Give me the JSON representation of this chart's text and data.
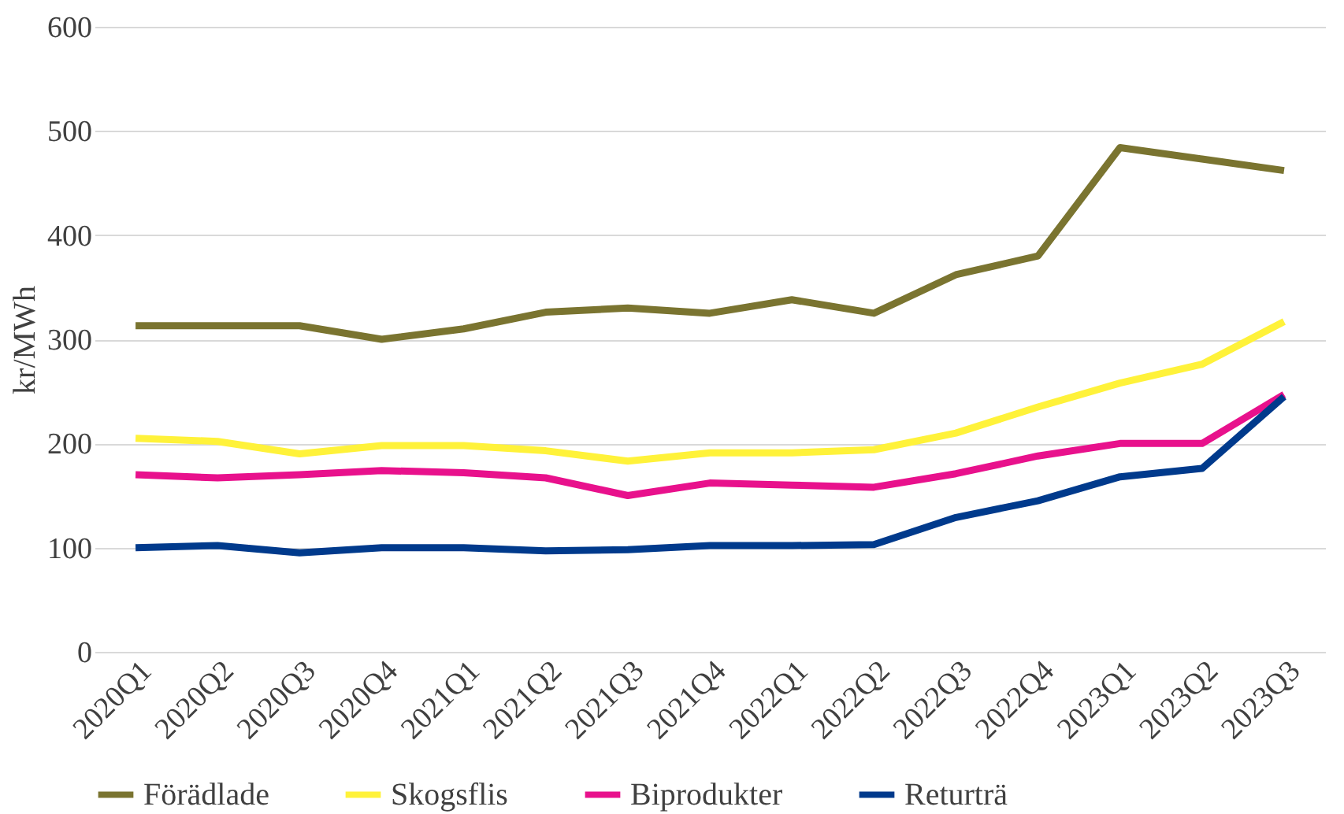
{
  "chart_data": {
    "type": "line",
    "ylabel": "kr/MWh",
    "categories": [
      "2020Q1",
      "2020Q2",
      "2020Q3",
      "2020Q4",
      "2021Q1",
      "2021Q2",
      "2021Q3",
      "2021Q4",
      "2022Q1",
      "2022Q2",
      "2022Q3",
      "2022Q4",
      "2023Q1",
      "2023Q2",
      "2023Q3"
    ],
    "series": [
      {
        "name": "Förädlade",
        "color": "#7a7430",
        "values": [
          313,
          313,
          313,
          300,
          310,
          326,
          330,
          325,
          338,
          325,
          362,
          380,
          484,
          473,
          462
        ]
      },
      {
        "name": "Skogsflis",
        "color": "#fff23a",
        "values": [
          205,
          202,
          190,
          198,
          198,
          193,
          183,
          191,
          191,
          194,
          210,
          235,
          258,
          276,
          317
        ]
      },
      {
        "name": "Biprodukter",
        "color": "#e8118c",
        "values": [
          170,
          167,
          170,
          174,
          172,
          167,
          150,
          162,
          160,
          158,
          171,
          188,
          200,
          200,
          247
        ]
      },
      {
        "name": "Returträ",
        "color": "#003a8c",
        "values": [
          100,
          102,
          95,
          100,
          100,
          97,
          98,
          102,
          102,
          103,
          129,
          145,
          168,
          176,
          245
        ]
      }
    ],
    "ylim": [
      0,
      600
    ],
    "yticks": [
      0,
      100,
      200,
      300,
      400,
      500,
      600
    ],
    "grid": "y",
    "legend": "bottom",
    "marker": "none",
    "line_style": "solid"
  }
}
